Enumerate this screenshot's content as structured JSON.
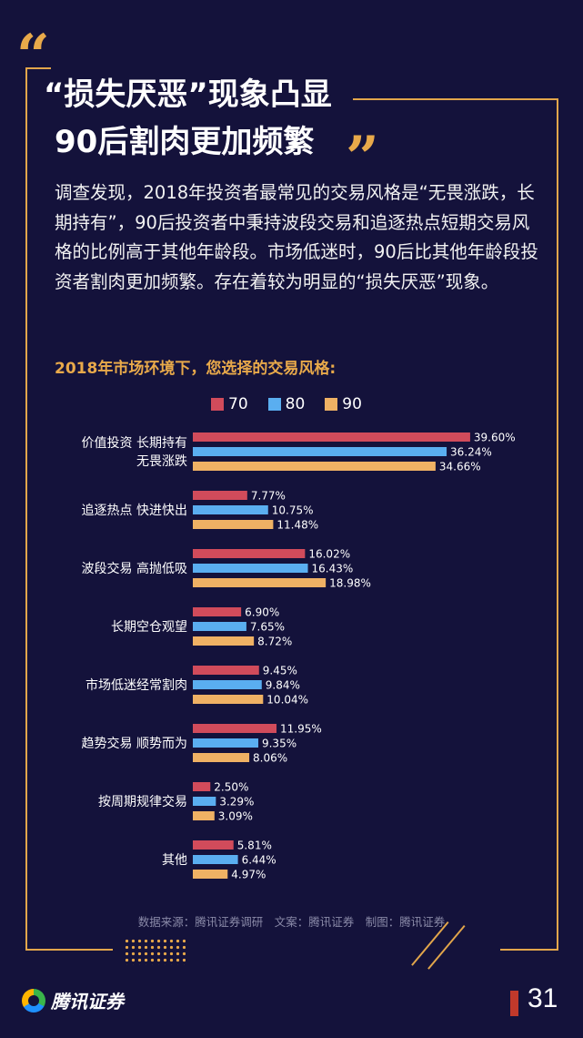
{
  "header": {
    "quote_open": "“",
    "quote_close": "”",
    "title_line1": "“损失厌恶”现象凸显",
    "title_line2": "90后割肉更加频繁"
  },
  "intro": "调查发现，2018年投资者最常见的交易风格是“无畏涨跌，长期持有”，90后投资者中秉持波段交易和追逐热点短期交易风格的比例高于其他年龄段。市场低迷时，90后比其他年龄段投资者割肉更加频繁。存在着较为明显的“损失厌恶”现象。",
  "chart_data": {
    "type": "bar",
    "orientation": "horizontal",
    "title": "2018年市场环境下，您选择的交易风格:",
    "categories": [
      [
        "价值投资 长期持有",
        "无畏涨跌"
      ],
      [
        "追逐热点 快进快出"
      ],
      [
        "波段交易 高抛低吸"
      ],
      [
        "长期空仓观望"
      ],
      [
        "市场低迷经常割肉"
      ],
      [
        "趋势交易 顺势而为"
      ],
      [
        "按周期规律交易"
      ],
      [
        "其他"
      ]
    ],
    "series": [
      {
        "name": "70",
        "color": "#d14b5b",
        "values": [
          39.6,
          7.77,
          16.02,
          6.9,
          9.45,
          11.95,
          2.5,
          5.81
        ],
        "labels": [
          "39.60%",
          "7.77%",
          "16.02%",
          "6.90%",
          "9.45%",
          "11.95%",
          "2.50%",
          "5.81%"
        ]
      },
      {
        "name": "80",
        "color": "#5aaef0",
        "values": [
          36.24,
          10.75,
          16.43,
          7.65,
          9.84,
          9.35,
          3.29,
          6.44
        ],
        "labels": [
          "36.24%",
          "10.75%",
          "16.43%",
          "7.65%",
          "9.84%",
          "9.35%",
          "3.29%",
          "6.44%"
        ]
      },
      {
        "name": "90",
        "color": "#efb164",
        "values": [
          34.66,
          11.48,
          18.98,
          8.72,
          10.04,
          8.06,
          3.09,
          4.97
        ],
        "labels": [
          "34.66%",
          "11.48%",
          "18.98%",
          "8.72%",
          "10.04%",
          "8.06%",
          "3.09%",
          "4.97%"
        ]
      }
    ],
    "legend_position": "top",
    "grid": false
  },
  "footer": {
    "source": "数据来源：腾讯证券调研　文案：腾讯证券　制图：腾讯证券",
    "brand": "腾讯证券",
    "page_number": "31"
  },
  "colors": {
    "background": "#14123b",
    "accent": "#e8a94a",
    "frame": "#e2a64b"
  }
}
